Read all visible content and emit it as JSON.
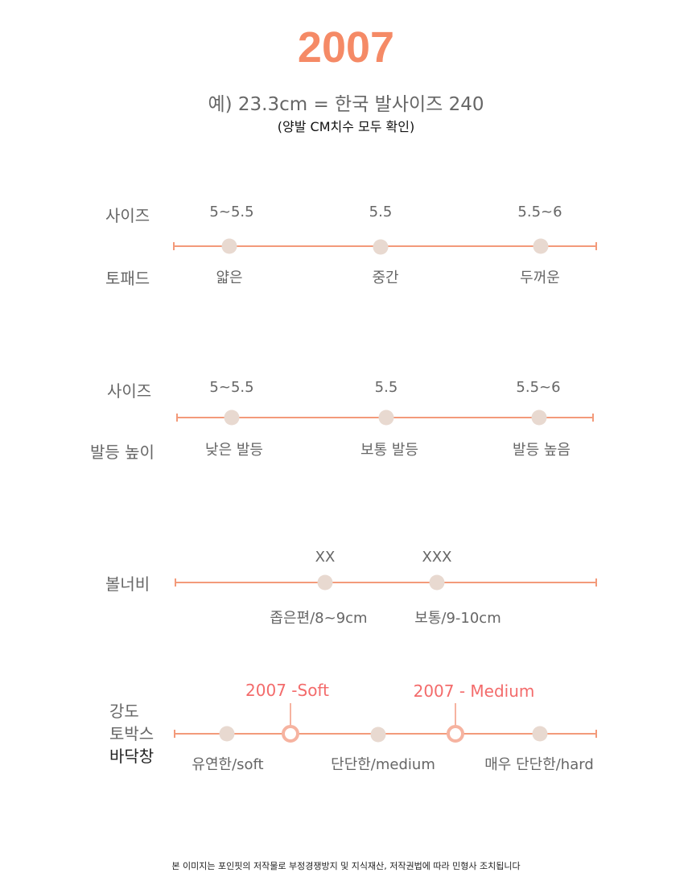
{
  "header": {
    "model": "2007",
    "example": "예) 23.3cm = 한국 발사이즈 240",
    "note": "(양발 CM치수 모두 확인)"
  },
  "toepad": {
    "size_label": "사이즈",
    "label": "토패드",
    "sizes": [
      "5~5.5",
      "5.5",
      "5.5~6"
    ],
    "captions": [
      "얇은",
      "중간",
      "두꺼운"
    ]
  },
  "instep": {
    "size_label": "사이즈",
    "label": "발등 높이",
    "sizes": [
      "5~5.5",
      "5.5",
      "5.5~6"
    ],
    "captions": [
      "낮은 발등",
      "보통 발등",
      "발등 높음"
    ]
  },
  "width": {
    "label": "볼너비",
    "sizes": [
      "XX",
      "XXX"
    ],
    "captions": [
      "좁은편/8~9cm",
      "보통/9-10cm"
    ]
  },
  "strength": {
    "labels": [
      "강도",
      "토박스",
      "바닥창"
    ],
    "callouts": [
      "2007 -Soft",
      "2007 - Medium"
    ],
    "captions": [
      "유연한/soft",
      "단단한/medium",
      "매우 단단한/hard"
    ]
  },
  "footer": "본 이미지는 포인핏의 저작물로 부정경쟁방지 및 지식재산, 저작권법에 따라 민형사 조치됩니다",
  "colors": {
    "accent": "#f58a66",
    "line": "#f39a7a",
    "dot": "#e8d9d0",
    "ring": "#f6b3a0",
    "callout": "#f36b6b"
  }
}
